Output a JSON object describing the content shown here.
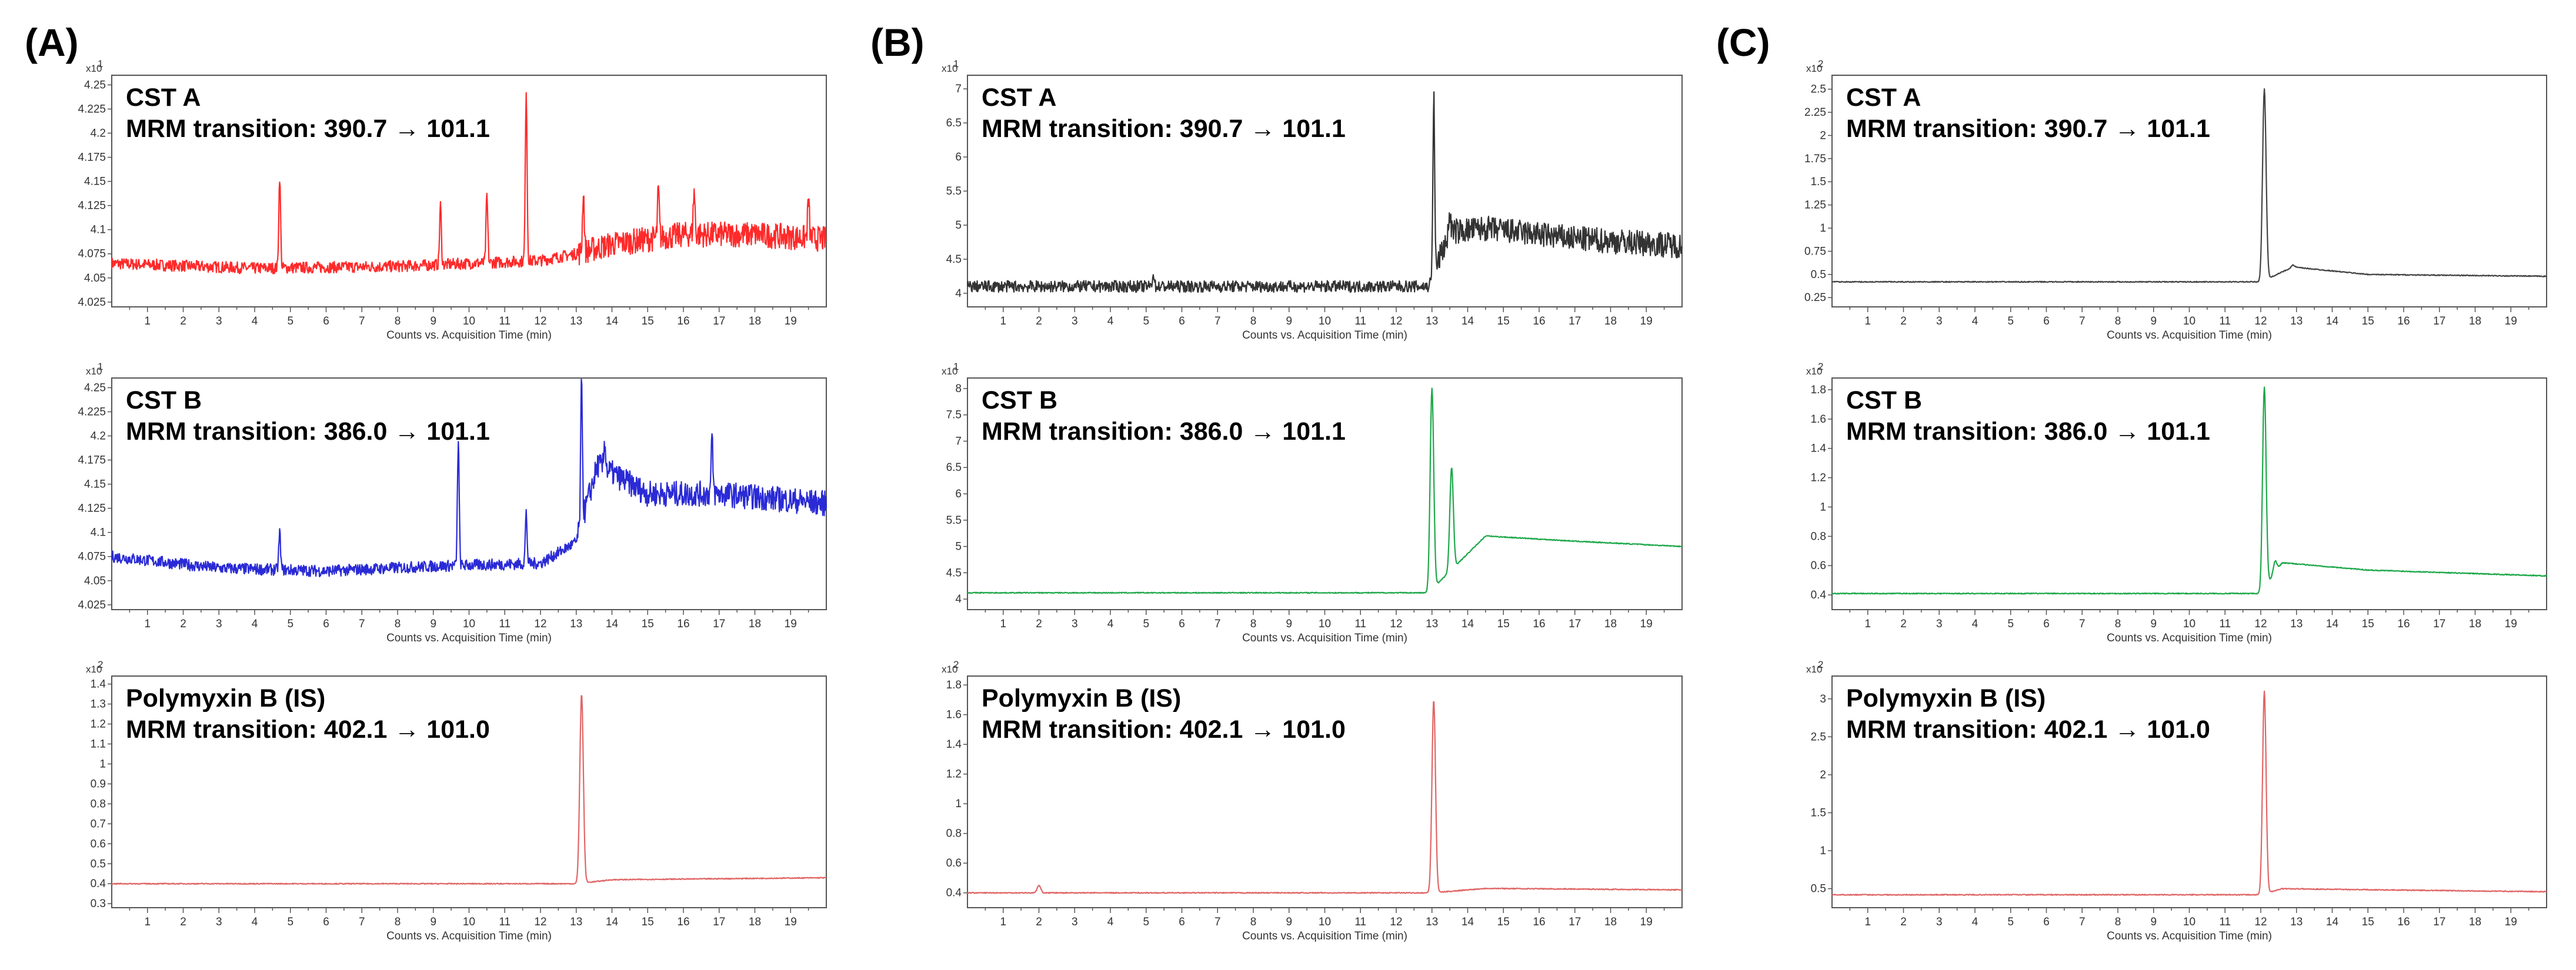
{
  "figure": {
    "panels": [
      {
        "label": "(A)",
        "charts": [
          {
            "compound": "CST A",
            "transition": "MRM transition: 390.7 → 101.1",
            "color": "#ff2a2a",
            "multiplier": "x10",
            "exponent": "1",
            "yticks": [
              "4.25",
              "4.225",
              "4.2",
              "4.175",
              "4.15",
              "4.125",
              "4.1",
              "4.075",
              "4.05",
              "4.025"
            ]
          },
          {
            "compound": "CST B",
            "transition": "MRM transition: 386.0 → 101.1",
            "color": "#2a2ad6",
            "multiplier": "x10",
            "exponent": "1",
            "yticks": [
              "4.25",
              "4.225",
              "4.2",
              "4.175",
              "4.15",
              "4.125",
              "4.1",
              "4.075",
              "4.05",
              "4.025"
            ]
          },
          {
            "compound": "Polymyxin B (IS)",
            "transition": "MRM transition: 402.1 → 101.0",
            "color": "#e06666",
            "multiplier": "x10",
            "exponent": "2",
            "yticks": [
              "1.4",
              "1.3",
              "1.2",
              "1.1",
              "1",
              "0.9",
              "0.8",
              "0.7",
              "0.6",
              "0.5",
              "0.4",
              "0.3"
            ]
          }
        ]
      },
      {
        "label": "(B)",
        "charts": [
          {
            "compound": "CST A",
            "transition": "MRM transition: 390.7 → 101.1",
            "color": "#333333",
            "multiplier": "x10",
            "exponent": "1",
            "yticks": [
              "7",
              "6.5",
              "6",
              "5.5",
              "5",
              "4.5",
              "4"
            ]
          },
          {
            "compound": "CST B",
            "transition": "MRM transition: 386.0 → 101.1",
            "color": "#1ea84a",
            "multiplier": "x10",
            "exponent": "1",
            "yticks": [
              "8",
              "7.5",
              "7",
              "6.5",
              "6",
              "5.5",
              "5",
              "4.5",
              "4"
            ]
          },
          {
            "compound": "Polymyxin B (IS)",
            "transition": "MRM transition: 402.1 → 101.0",
            "color": "#e06666",
            "multiplier": "x10",
            "exponent": "2",
            "yticks": [
              "1.8",
              "1.6",
              "1.4",
              "1.2",
              "1",
              "0.8",
              "0.6",
              "0.4"
            ]
          }
        ]
      },
      {
        "label": "(C)",
        "charts": [
          {
            "compound": "CST A",
            "transition": "MRM transition: 390.7 → 101.1",
            "color": "#444444",
            "multiplier": "x10",
            "exponent": "2",
            "yticks": [
              "2.5",
              "2.25",
              "2",
              "1.75",
              "1.5",
              "1.25",
              "1",
              "0.75",
              "0.5",
              "0.25"
            ]
          },
          {
            "compound": "CST B",
            "transition": "MRM transition: 386.0 → 101.1",
            "color": "#1ea84a",
            "multiplier": "x10",
            "exponent": "2",
            "yticks": [
              "1.8",
              "1.6",
              "1.4",
              "1.2",
              "1",
              "0.8",
              "0.6",
              "0.4"
            ]
          },
          {
            "compound": "Polymyxin B (IS)",
            "transition": "MRM transition: 402.1 → 101.0",
            "color": "#e06666",
            "multiplier": "x10",
            "exponent": "2",
            "yticks": [
              "3",
              "2.5",
              "2",
              "1.5",
              "1",
              "0.5"
            ]
          }
        ]
      }
    ]
  },
  "chart_data": [
    {
      "type": "line",
      "panel": "(A)",
      "title": "CST A",
      "subtitle": "MRM transition: 390.7 → 101.1",
      "xlabel": "Counts vs. Acquisition Time (min)",
      "ylabel": "",
      "y_multiplier": "x10^1",
      "xlim": [
        0,
        20
      ],
      "ylim": [
        4.02,
        4.26
      ],
      "x_ticks": [
        1,
        2,
        3,
        4,
        5,
        6,
        7,
        8,
        9,
        10,
        11,
        12,
        13,
        14,
        15,
        16,
        17,
        18,
        19
      ],
      "baseline": [
        [
          0,
          4.065
        ],
        [
          4,
          4.06
        ],
        [
          8,
          4.062
        ],
        [
          12,
          4.068
        ],
        [
          13,
          4.075
        ],
        [
          14,
          4.085
        ],
        [
          16,
          4.095
        ],
        [
          18,
          4.095
        ],
        [
          20,
          4.09
        ]
      ],
      "peaks": [
        [
          4.7,
          4.155
        ],
        [
          9.2,
          4.125
        ],
        [
          10.5,
          4.135
        ],
        [
          11.6,
          4.245
        ],
        [
          13.2,
          4.14
        ],
        [
          15.3,
          4.14
        ],
        [
          16.3,
          4.14
        ],
        [
          19.5,
          4.13
        ]
      ]
    },
    {
      "type": "line",
      "panel": "(A)",
      "title": "CST B",
      "subtitle": "MRM transition: 386.0 → 101.1",
      "xlabel": "Counts vs. Acquisition Time (min)",
      "ylabel": "",
      "y_multiplier": "x10^1",
      "xlim": [
        0,
        20
      ],
      "ylim": [
        4.02,
        4.26
      ],
      "x_ticks": [
        1,
        2,
        3,
        4,
        5,
        6,
        7,
        8,
        9,
        10,
        11,
        12,
        13,
        14,
        15,
        16,
        17,
        18,
        19
      ],
      "baseline": [
        [
          0,
          4.075
        ],
        [
          3,
          4.063
        ],
        [
          6,
          4.06
        ],
        [
          9,
          4.065
        ],
        [
          12,
          4.068
        ],
        [
          13,
          4.09
        ],
        [
          13.6,
          4.17
        ],
        [
          15,
          4.14
        ],
        [
          17,
          4.14
        ],
        [
          20,
          4.13
        ]
      ],
      "peaks": [
        [
          4.7,
          4.1
        ],
        [
          9.7,
          4.195
        ],
        [
          11.6,
          4.12
        ],
        [
          13.15,
          4.255
        ],
        [
          13.8,
          4.195
        ],
        [
          16.8,
          4.195
        ]
      ]
    },
    {
      "type": "line",
      "panel": "(A)",
      "title": "Polymyxin B (IS)",
      "subtitle": "MRM transition: 402.1 → 101.0",
      "xlabel": "Counts vs. Acquisition Time (min)",
      "ylabel": "",
      "y_multiplier": "x10^2",
      "xlim": [
        0,
        20
      ],
      "ylim": [
        0.28,
        1.44
      ],
      "x_ticks": [
        1,
        2,
        3,
        4,
        5,
        6,
        7,
        8,
        9,
        10,
        11,
        12,
        13,
        14,
        15,
        16,
        17,
        18,
        19
      ],
      "baseline": [
        [
          0,
          0.4
        ],
        [
          13,
          0.4
        ],
        [
          14,
          0.42
        ],
        [
          20,
          0.43
        ]
      ],
      "peaks": [
        [
          13.15,
          1.35
        ]
      ]
    },
    {
      "type": "line",
      "panel": "(B)",
      "title": "CST A",
      "subtitle": "MRM transition: 390.7 → 101.1",
      "xlabel": "Counts vs. Acquisition Time (min)",
      "ylabel": "",
      "y_multiplier": "x10^1",
      "xlim": [
        0,
        20
      ],
      "ylim": [
        3.8,
        7.2
      ],
      "x_ticks": [
        1,
        2,
        3,
        4,
        5,
        6,
        7,
        8,
        9,
        10,
        11,
        12,
        13,
        14,
        15,
        16,
        17,
        18,
        19
      ],
      "baseline": [
        [
          0,
          4.1
        ],
        [
          12.9,
          4.1
        ],
        [
          13.5,
          4.9
        ],
        [
          14.5,
          4.95
        ],
        [
          17,
          4.8
        ],
        [
          20,
          4.7
        ]
      ],
      "peaks": [
        [
          5.2,
          4.3
        ],
        [
          13.05,
          6.9
        ],
        [
          13.5,
          5.2
        ]
      ]
    },
    {
      "type": "line",
      "panel": "(B)",
      "title": "CST B",
      "subtitle": "MRM transition: 386.0 → 101.1",
      "xlabel": "Counts vs. Acquisition Time (min)",
      "ylabel": "",
      "y_multiplier": "x10^1",
      "xlim": [
        0,
        20
      ],
      "ylim": [
        3.8,
        8.2
      ],
      "x_ticks": [
        1,
        2,
        3,
        4,
        5,
        6,
        7,
        8,
        9,
        10,
        11,
        12,
        13,
        14,
        15,
        16,
        17,
        18,
        19
      ],
      "baseline": [
        [
          0,
          4.12
        ],
        [
          12.9,
          4.12
        ],
        [
          14.5,
          5.2
        ],
        [
          17,
          5.1
        ],
        [
          20,
          5.0
        ]
      ],
      "peaks": [
        [
          13.0,
          8.0
        ],
        [
          13.55,
          6.5
        ]
      ]
    },
    {
      "type": "line",
      "panel": "(B)",
      "title": "Polymyxin B (IS)",
      "subtitle": "MRM transition: 402.1 → 101.0",
      "xlabel": "Counts vs. Acquisition Time (min)",
      "ylabel": "",
      "y_multiplier": "x10^2",
      "xlim": [
        0,
        20
      ],
      "ylim": [
        0.3,
        1.86
      ],
      "x_ticks": [
        1,
        2,
        3,
        4,
        5,
        6,
        7,
        8,
        9,
        10,
        11,
        12,
        13,
        14,
        15,
        16,
        17,
        18,
        19
      ],
      "baseline": [
        [
          0,
          0.4
        ],
        [
          13,
          0.4
        ],
        [
          14.5,
          0.43
        ],
        [
          20,
          0.42
        ]
      ],
      "peaks": [
        [
          2.0,
          0.45
        ],
        [
          13.05,
          1.7
        ]
      ]
    },
    {
      "type": "line",
      "panel": "(C)",
      "title": "CST A",
      "subtitle": "MRM transition: 390.7 → 101.1",
      "xlabel": "Counts vs. Acquisition Time (min)",
      "ylabel": "",
      "y_multiplier": "x10^2",
      "xlim": [
        0,
        20
      ],
      "ylim": [
        0.15,
        2.65
      ],
      "x_ticks": [
        1,
        2,
        3,
        4,
        5,
        6,
        7,
        8,
        9,
        10,
        11,
        12,
        13,
        14,
        15,
        16,
        17,
        18,
        19
      ],
      "baseline": [
        [
          0,
          0.42
        ],
        [
          12,
          0.42
        ],
        [
          12.9,
          0.58
        ],
        [
          15,
          0.5
        ],
        [
          20,
          0.48
        ]
      ],
      "peaks": [
        [
          12.1,
          2.5
        ],
        [
          12.9,
          0.6
        ]
      ]
    },
    {
      "type": "line",
      "panel": "(C)",
      "title": "CST B",
      "subtitle": "MRM transition: 386.0 → 101.1",
      "xlabel": "Counts vs. Acquisition Time (min)",
      "ylabel": "",
      "y_multiplier": "x10^2",
      "xlim": [
        0,
        20
      ],
      "ylim": [
        0.3,
        1.88
      ],
      "x_ticks": [
        1,
        2,
        3,
        4,
        5,
        6,
        7,
        8,
        9,
        10,
        11,
        12,
        13,
        14,
        15,
        16,
        17,
        18,
        19
      ],
      "baseline": [
        [
          0,
          0.41
        ],
        [
          12,
          0.41
        ],
        [
          12.6,
          0.62
        ],
        [
          15,
          0.57
        ],
        [
          20,
          0.53
        ]
      ],
      "peaks": [
        [
          12.1,
          1.82
        ],
        [
          12.4,
          0.63
        ]
      ]
    },
    {
      "type": "line",
      "panel": "(C)",
      "title": "Polymyxin B (IS)",
      "subtitle": "MRM transition: 402.1 → 101.0",
      "xlabel": "Counts vs. Acquisition Time (min)",
      "ylabel": "",
      "y_multiplier": "x10^2",
      "xlim": [
        0,
        20
      ],
      "ylim": [
        0.25,
        3.3
      ],
      "x_ticks": [
        1,
        2,
        3,
        4,
        5,
        6,
        7,
        8,
        9,
        10,
        11,
        12,
        13,
        14,
        15,
        16,
        17,
        18,
        19
      ],
      "baseline": [
        [
          0,
          0.42
        ],
        [
          12,
          0.42
        ],
        [
          12.6,
          0.5
        ],
        [
          20,
          0.46
        ]
      ],
      "peaks": [
        [
          12.1,
          3.1
        ]
      ]
    }
  ]
}
